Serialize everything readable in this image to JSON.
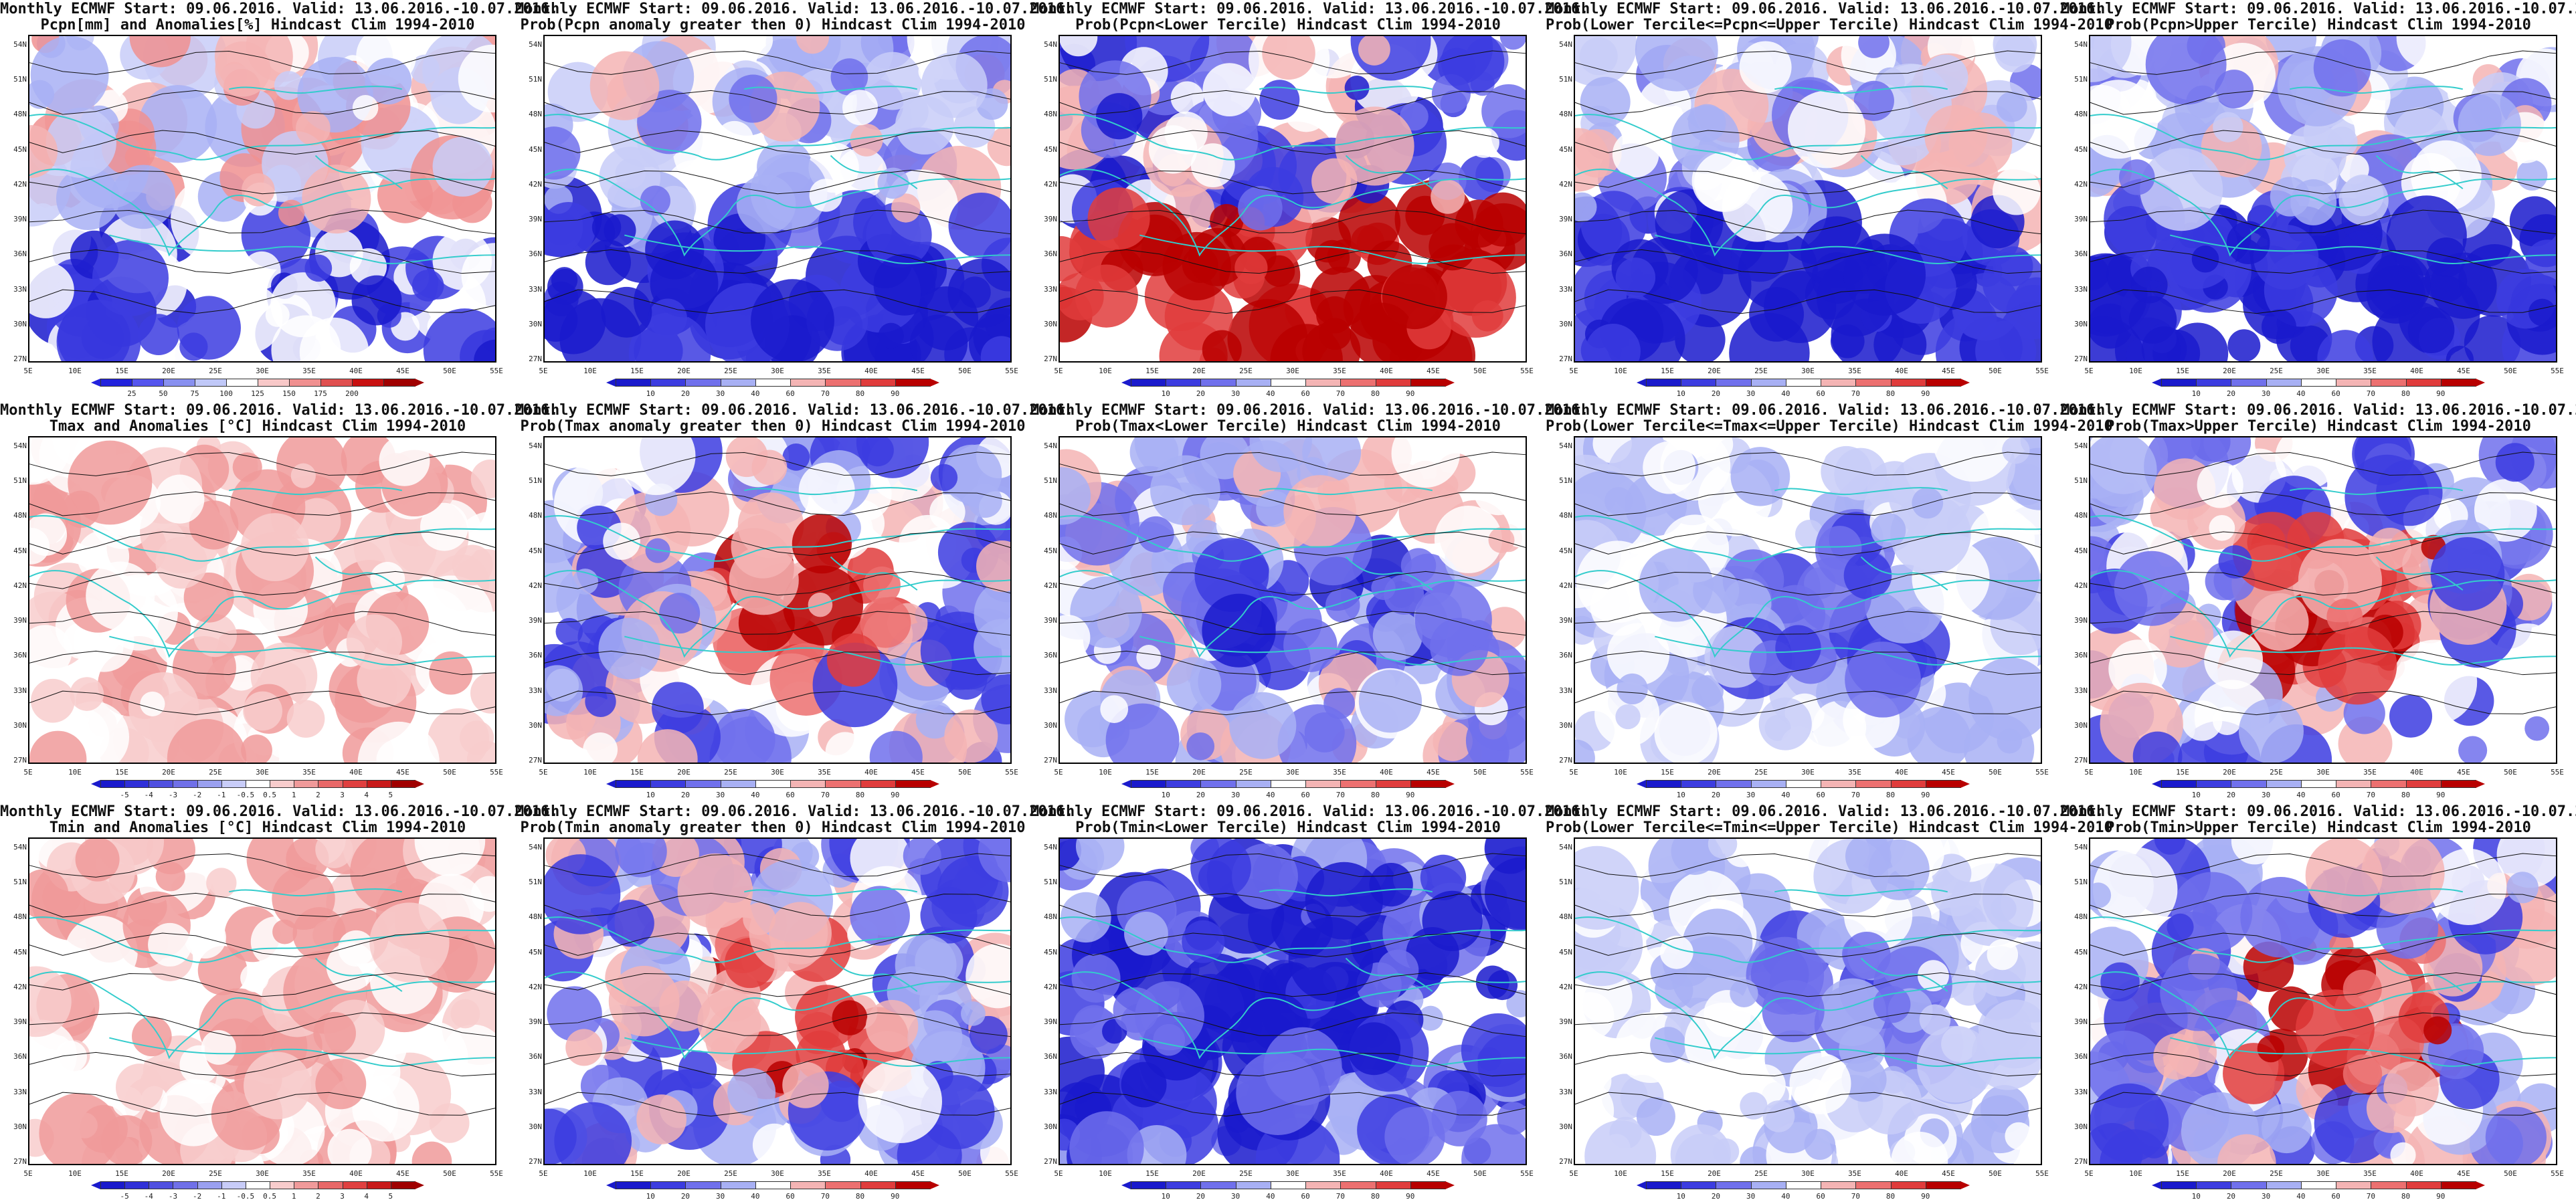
{
  "header_line": "Monthly ECMWF Start: 09.06.2016. Valid: 13.06.2016.-10.07.2016.",
  "lat_labels": [
    "54N",
    "51N",
    "48N",
    "45N",
    "42N",
    "39N",
    "36N",
    "33N",
    "30N",
    "27N"
  ],
  "lon_labels": [
    "5E",
    "10E",
    "15E",
    "20E",
    "25E",
    "30E",
    "35E",
    "40E",
    "45E",
    "50E",
    "55E"
  ],
  "colors": {
    "map_bg": "#ffffff",
    "coast": "#33cccc",
    "contour": "#111111",
    "pos_dark": "#b30000",
    "pos_light": "#f4b0b0",
    "neg_dark": "#0000b3",
    "neg_light": "#b0b8f4"
  },
  "legends": {
    "pcpn_anom": {
      "ticks": [
        "25",
        "50",
        "75",
        "100",
        "125",
        "150",
        "175",
        "200"
      ],
      "colors": [
        "#2222dd",
        "#5555ee",
        "#8890f0",
        "#c0c8f8",
        "#ffffff",
        "#f8c8c8",
        "#f09090",
        "#e05050",
        "#c81010",
        "#a00000"
      ]
    },
    "prob": {
      "ticks": [
        "10",
        "20",
        "30",
        "40",
        "60",
        "70",
        "80",
        "90"
      ],
      "colors": [
        "#1a1acc",
        "#3c3ce0",
        "#7070ec",
        "#a8b0f4",
        "#ffffff",
        "#f4b4b4",
        "#ec7070",
        "#e03c3c",
        "#b80000"
      ]
    },
    "temp_anom": {
      "ticks": [
        "-5",
        "-4",
        "-3",
        "-2",
        "-1",
        "-0.5",
        "0.5",
        "1",
        "2",
        "3",
        "4",
        "5"
      ],
      "colors": [
        "#1a1acc",
        "#3030d8",
        "#5050e0",
        "#7070e8",
        "#9aa0f0",
        "#c8ccf8",
        "#ffffff",
        "#f8cccc",
        "#f09a9a",
        "#e86868",
        "#e04040",
        "#c81a1a",
        "#a00000"
      ]
    }
  },
  "panels": [
    {
      "id": "r1c1",
      "title2": "Pcpn[mm] and Anomalies[%] Hindcast Clim 1994-2010",
      "legend": "pcpn_anom",
      "tone": "mixed-pcp"
    },
    {
      "id": "r1c2",
      "title2": "Prob(Pcpn anomaly greater then 0) Hindcast Clim 1994-2010",
      "legend": "prob",
      "tone": "blue-south"
    },
    {
      "id": "r1c3",
      "title2": "Prob(Pcpn<Lower Tercile) Hindcast Clim 1994-2010",
      "legend": "prob",
      "tone": "red-south"
    },
    {
      "id": "r1c4",
      "title2": "Prob(Lower Tercile<=Pcpn<=Upper Tercile) Hindcast Clim 1994-2010",
      "legend": "prob",
      "tone": "blue-south"
    },
    {
      "id": "r1c5",
      "title2": "Prob(Pcpn>Upper Tercile) Hindcast Clim 1994-2010",
      "legend": "prob",
      "tone": "blue-south"
    },
    {
      "id": "r2c1",
      "title2": "Tmax and Anomalies [°C] Hindcast Clim 1994-2010",
      "legend": "temp_anom",
      "tone": "light-red"
    },
    {
      "id": "r2c2",
      "title2": "Prob(Tmax anomaly greater then 0) Hindcast Clim 1994-2010",
      "legend": "prob",
      "tone": "red-center"
    },
    {
      "id": "r2c3",
      "title2": "Prob(Tmax<Lower Tercile) Hindcast Clim 1994-2010",
      "legend": "prob",
      "tone": "blue-center"
    },
    {
      "id": "r2c4",
      "title2": "Prob(Lower Tercile<=Tmax<=Upper Tercile) Hindcast Clim 1994-2010",
      "legend": "prob",
      "tone": "light-blue"
    },
    {
      "id": "r2c5",
      "title2": "Prob(Tmax>Upper Tercile) Hindcast Clim 1994-2010",
      "legend": "prob",
      "tone": "red-center"
    },
    {
      "id": "r3c1",
      "title2": "Tmin and Anomalies [°C] Hindcast Clim 1994-2010",
      "legend": "temp_anom",
      "tone": "light-red"
    },
    {
      "id": "r3c2",
      "title2": "Prob(Tmin anomaly greater then 0) Hindcast Clim 1994-2010",
      "legend": "prob",
      "tone": "red-center"
    },
    {
      "id": "r3c3",
      "title2": "Prob(Tmin<Lower Tercile) Hindcast Clim 1994-2010",
      "legend": "prob",
      "tone": "blue-all"
    },
    {
      "id": "r3c4",
      "title2": "Prob(Lower Tercile<=Tmin<=Upper Tercile) Hindcast Clim 1994-2010",
      "legend": "prob",
      "tone": "light-blue"
    },
    {
      "id": "r3c5",
      "title2": "Prob(Tmin>Upper Tercile) Hindcast Clim 1994-2010",
      "legend": "prob",
      "tone": "red-center"
    }
  ]
}
